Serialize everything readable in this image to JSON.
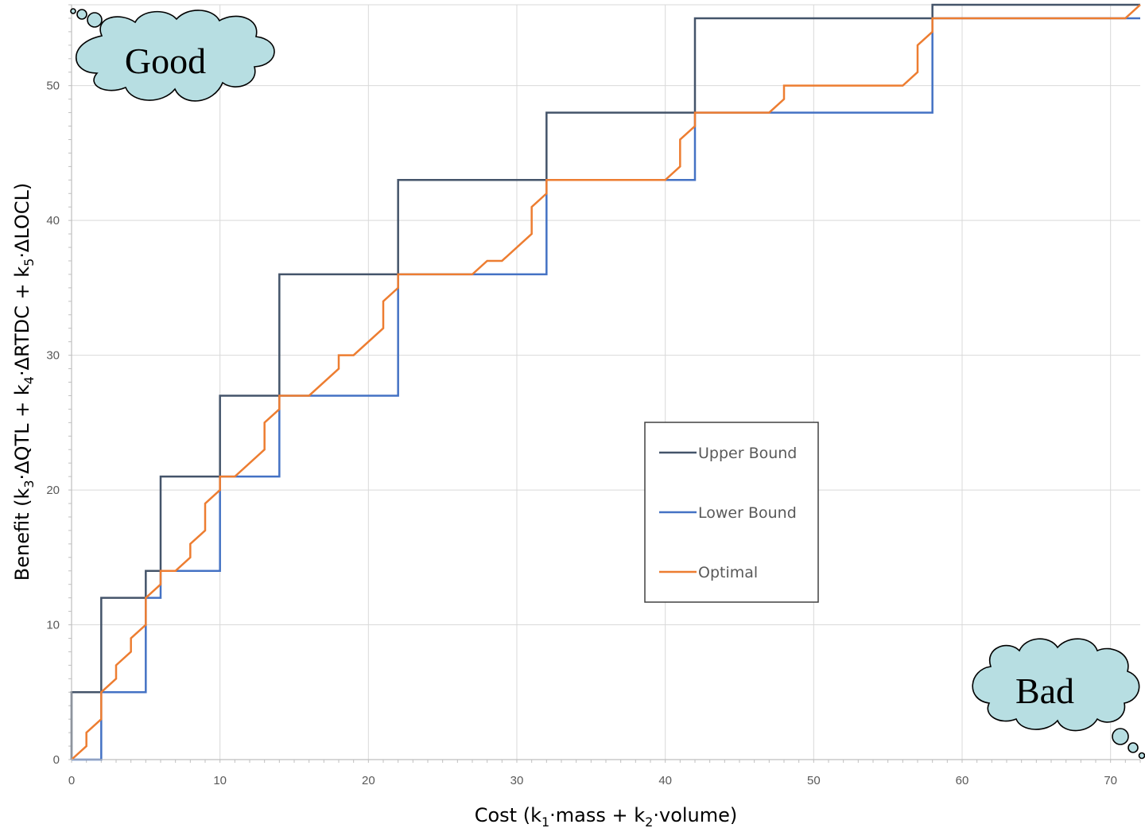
{
  "chart_data": {
    "type": "line",
    "step": true,
    "xlabel": "Cost (k1·mass + k2·volume)",
    "xlabel_parts": {
      "pre": "Cost (k",
      "sub1": "1",
      "mid": "·mass + k",
      "sub2": "2",
      "post": "·volume)"
    },
    "ylabel": "Benefit (k3·ΔQTL + k4·ΔRTDC + k5·ΔLOCL)",
    "ylabel_parts": {
      "pre": "Benefit (k",
      "sub1": "3",
      "mid1": "·ΔQTL + k",
      "sub2": "4",
      "mid2": "·ΔRTDC + k",
      "sub3": "5",
      "post": "·ΔLOCL)"
    },
    "xlim": [
      0,
      72
    ],
    "ylim": [
      0,
      56
    ],
    "x_ticks": [
      0,
      10,
      20,
      30,
      40,
      50,
      60,
      70
    ],
    "y_ticks": [
      0,
      10,
      20,
      30,
      40,
      50
    ],
    "grid": true,
    "legend_position": "center-right",
    "series": [
      {
        "name": "Upper Bound",
        "color": "#44546a",
        "points": [
          [
            0,
            0
          ],
          [
            0,
            5
          ],
          [
            2,
            5
          ],
          [
            2,
            12
          ],
          [
            5,
            12
          ],
          [
            5,
            14
          ],
          [
            6,
            14
          ],
          [
            6,
            21
          ],
          [
            10,
            21
          ],
          [
            10,
            27
          ],
          [
            14,
            27
          ],
          [
            14,
            36
          ],
          [
            22,
            36
          ],
          [
            22,
            43
          ],
          [
            32,
            43
          ],
          [
            32,
            48
          ],
          [
            42,
            48
          ],
          [
            42,
            55
          ],
          [
            58,
            55
          ],
          [
            58,
            56
          ],
          [
            72,
            56
          ]
        ]
      },
      {
        "name": "Lower Bound",
        "color": "#4472c4",
        "points": [
          [
            0,
            0
          ],
          [
            2,
            0
          ],
          [
            2,
            5
          ],
          [
            5,
            5
          ],
          [
            5,
            12
          ],
          [
            6,
            12
          ],
          [
            6,
            14
          ],
          [
            10,
            14
          ],
          [
            10,
            21
          ],
          [
            14,
            21
          ],
          [
            14,
            27
          ],
          [
            22,
            27
          ],
          [
            22,
            36
          ],
          [
            32,
            36
          ],
          [
            32,
            43
          ],
          [
            42,
            43
          ],
          [
            42,
            48
          ],
          [
            58,
            48
          ],
          [
            58,
            55
          ],
          [
            72,
            55
          ]
        ]
      },
      {
        "name": "Optimal",
        "color": "#ed7d31",
        "points": [
          [
            0,
            0
          ],
          [
            1,
            1
          ],
          [
            1,
            2
          ],
          [
            2,
            3
          ],
          [
            2,
            5
          ],
          [
            3,
            6
          ],
          [
            3,
            7
          ],
          [
            4,
            8
          ],
          [
            4,
            9
          ],
          [
            5,
            10
          ],
          [
            5,
            12
          ],
          [
            6,
            13
          ],
          [
            6,
            14
          ],
          [
            7,
            14
          ],
          [
            8,
            15
          ],
          [
            8,
            16
          ],
          [
            9,
            17
          ],
          [
            9,
            19
          ],
          [
            10,
            20
          ],
          [
            10,
            21
          ],
          [
            11,
            21
          ],
          [
            13,
            23
          ],
          [
            13,
            25
          ],
          [
            14,
            26
          ],
          [
            14,
            27
          ],
          [
            16,
            27
          ],
          [
            18,
            29
          ],
          [
            18,
            30
          ],
          [
            19,
            30
          ],
          [
            21,
            32
          ],
          [
            21,
            34
          ],
          [
            22,
            35
          ],
          [
            22,
            36
          ],
          [
            27,
            36
          ],
          [
            28,
            37
          ],
          [
            29,
            37
          ],
          [
            31,
            39
          ],
          [
            31,
            41
          ],
          [
            32,
            42
          ],
          [
            32,
            43
          ],
          [
            40,
            43
          ],
          [
            41,
            44
          ],
          [
            41,
            46
          ],
          [
            42,
            47
          ],
          [
            42,
            48
          ],
          [
            47,
            48
          ],
          [
            48,
            49
          ],
          [
            48,
            50
          ],
          [
            56,
            50
          ],
          [
            57,
            51
          ],
          [
            57,
            53
          ],
          [
            58,
            54
          ],
          [
            58,
            55
          ],
          [
            71,
            55
          ],
          [
            72,
            56
          ]
        ]
      }
    ],
    "annotations": [
      {
        "text": "Good",
        "position": "top-left"
      },
      {
        "text": "Bad",
        "position": "bottom-right"
      }
    ]
  }
}
